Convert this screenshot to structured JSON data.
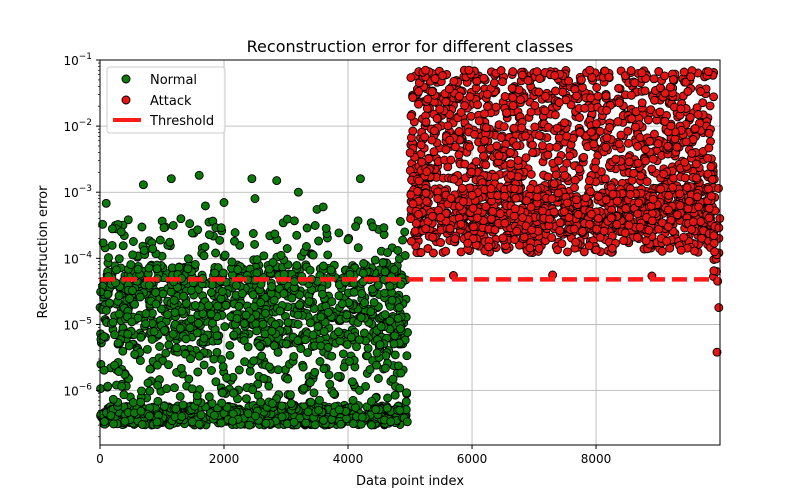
{
  "chart_data": {
    "type": "scatter",
    "title": "Reconstruction error for different classes",
    "xlabel": "Data point index",
    "ylabel": "Reconstruction error",
    "xlim": [
      0,
      9999
    ],
    "ylim": [
      1.5e-07,
      0.1
    ],
    "yscale": "log",
    "grid": true,
    "legend_position": "top-left",
    "xticks": [
      0,
      2000,
      4000,
      6000,
      8000
    ],
    "xtick_labels": [
      "0",
      "2000",
      "4000",
      "6000",
      "8000"
    ],
    "yticks": [
      1e-06,
      1e-05,
      0.0001,
      0.001,
      0.01,
      0.1
    ],
    "ytick_labels": [
      {
        "base": "10",
        "exp": "−6"
      },
      {
        "base": "10",
        "exp": "−5"
      },
      {
        "base": "10",
        "exp": "−4"
      },
      {
        "base": "10",
        "exp": "−3"
      },
      {
        "base": "10",
        "exp": "−2"
      },
      {
        "base": "10",
        "exp": "−1"
      }
    ],
    "series": [
      {
        "name": "Normal",
        "color": "#0b7a0b",
        "edge_color": "#000000",
        "x_range": [
          0,
          4960
        ],
        "band_low": [
          3e-07,
          6e-07
        ],
        "band_high": [
          5e-06,
          8e-05
        ],
        "outliers": [
          {
            "x": 100,
            "y": 0.00068
          },
          {
            "x": 200,
            "y": 0.00028
          },
          {
            "x": 700,
            "y": 0.0013
          },
          {
            "x": 1150,
            "y": 0.0016
          },
          {
            "x": 1600,
            "y": 0.0018
          },
          {
            "x": 1700,
            "y": 0.00062
          },
          {
            "x": 2000,
            "y": 0.0007
          },
          {
            "x": 2450,
            "y": 0.0016
          },
          {
            "x": 2500,
            "y": 0.0008
          },
          {
            "x": 2850,
            "y": 0.0015
          },
          {
            "x": 3200,
            "y": 0.001
          },
          {
            "x": 3500,
            "y": 0.00055
          },
          {
            "x": 3600,
            "y": 0.0006
          },
          {
            "x": 4200,
            "y": 0.0016
          },
          {
            "x": 4400,
            "y": 0.0003
          }
        ]
      },
      {
        "name": "Attack",
        "color": "#e81414",
        "edge_color": "#000000",
        "x_range": [
          5000,
          9999
        ],
        "band_main": [
          0.00012,
          0.04
        ],
        "band_top": [
          0.045,
          0.07
        ],
        "outliers": [
          {
            "x": 9950,
            "y": 3.8e-06
          },
          {
            "x": 9980,
            "y": 1.8e-05
          },
          {
            "x": 9960,
            "y": 4.5e-05
          },
          {
            "x": 9900,
            "y": 6.5e-05
          },
          {
            "x": 5700,
            "y": 5.5e-05
          },
          {
            "x": 7300,
            "y": 5.6e-05
          },
          {
            "x": 8900,
            "y": 5.4e-05
          },
          {
            "x": 5250,
            "y": 0.07
          },
          {
            "x": 5950,
            "y": 0.07
          },
          {
            "x": 7900,
            "y": 0.07
          }
        ]
      },
      {
        "name": "Threshold",
        "type": "line",
        "color": "#ff1a1a",
        "dash": true,
        "y": 4.8e-05,
        "x_range": [
          0,
          9999
        ]
      }
    ]
  }
}
